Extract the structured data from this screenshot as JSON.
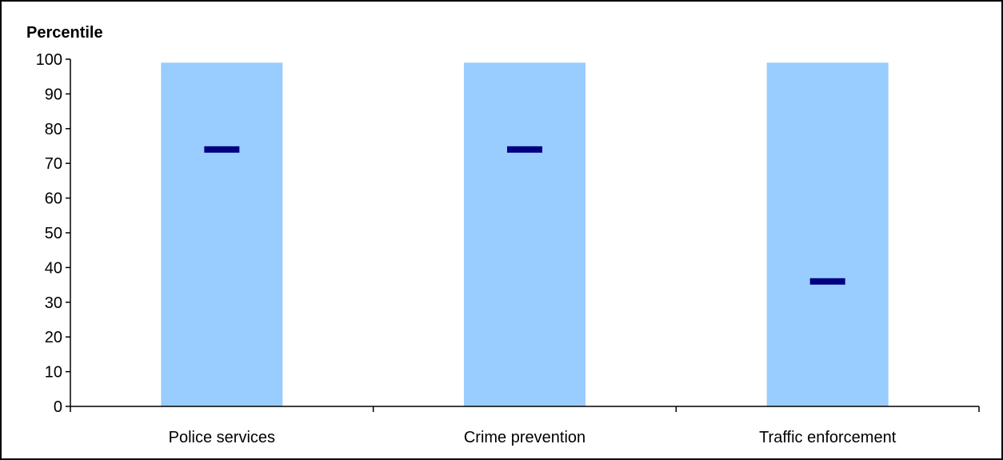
{
  "chart_data": {
    "type": "bar",
    "title": "",
    "ylabel": "Percentile",
    "xlabel": "",
    "ylim": [
      0,
      100
    ],
    "yticks": [
      0,
      10,
      20,
      30,
      40,
      50,
      60,
      70,
      80,
      90,
      100
    ],
    "categories": [
      "Police services",
      "Crime prevention",
      "Traffic enforcement"
    ],
    "range": {
      "low": [
        0,
        0,
        0
      ],
      "high": [
        99,
        99,
        99
      ]
    },
    "marker_values": [
      74,
      74,
      36
    ],
    "grid": false,
    "legend": "none",
    "colors": {
      "range_bar": "#99CCFF",
      "marker": "#000080",
      "axis": "#000000"
    }
  }
}
